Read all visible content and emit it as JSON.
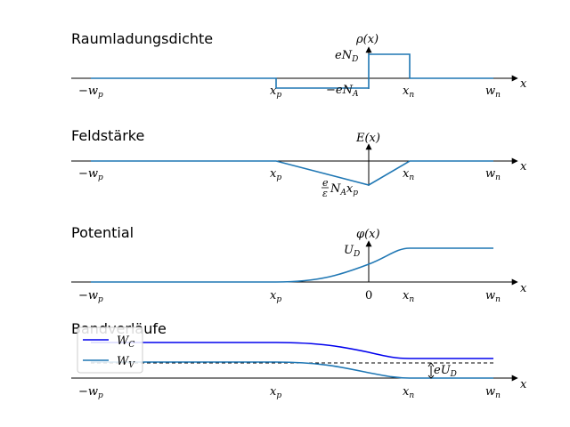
{
  "panels": {
    "charge": {
      "title": "Raumladungsdichte",
      "ylabel": "ρ(x)",
      "label_nd": "eN",
      "label_nd_sub": "D",
      "label_na": "−eN",
      "label_na_sub": "A"
    },
    "field": {
      "title": "Feldstärke",
      "ylabel": "E(x)",
      "annot_num": "e",
      "annot_den": "ε",
      "annot_rest": "N",
      "annot_rest_sub": "A",
      "annot_x": "x",
      "annot_x_sub": "p"
    },
    "potential": {
      "title": "Potential",
      "ylabel": "φ(x)",
      "label_ud": "U",
      "label_ud_sub": "D",
      "zero": "0"
    },
    "bands": {
      "title": "Bandverläufe",
      "label_eud": "eU",
      "label_eud_sub": "D",
      "legend_wc": "W",
      "legend_wc_sub": "C",
      "legend_wv": "W",
      "legend_wv_sub": "V"
    }
  },
  "axes": {
    "xlabel": "x",
    "ticks": [
      {
        "main": "−w",
        "sub": "p"
      },
      {
        "main": "x",
        "sub": "p"
      },
      {
        "main": "x",
        "sub": "n"
      },
      {
        "main": "w",
        "sub": "n"
      }
    ]
  },
  "colors": {
    "curve": "#1f77b4",
    "wc": "#0000ee"
  }
}
